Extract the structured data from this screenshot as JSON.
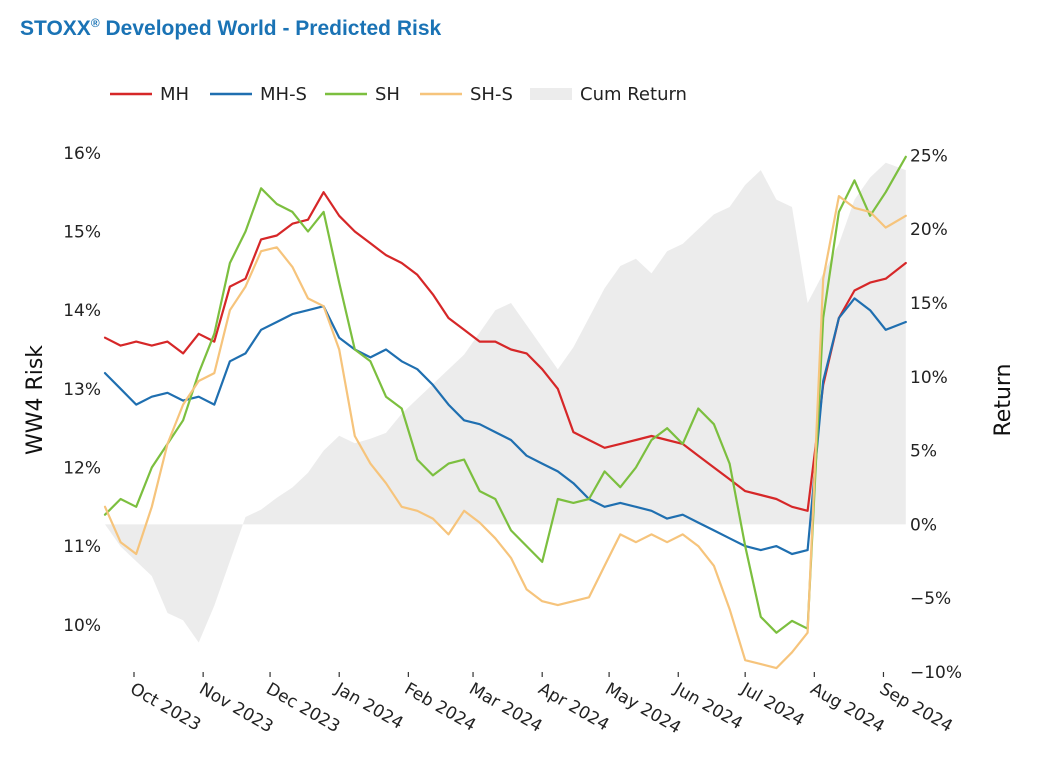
{
  "title": {
    "brand": "STOXX",
    "reg": "®",
    "rest": " Developed World - Predicted Risk"
  },
  "chart_data": {
    "type": "line",
    "title": "STOXX® Developed World - Predicted Risk",
    "ylabel": "WW4 Risk",
    "y2label": "Return",
    "ylim": [
      9.4,
      16.1
    ],
    "y2lim": [
      -10,
      25.7
    ],
    "yticks": [
      "10%",
      "11%",
      "12%",
      "13%",
      "14%",
      "15%",
      "16%"
    ],
    "yticks_values": [
      10,
      11,
      12,
      13,
      14,
      15,
      16
    ],
    "y2ticks": [
      "−10%",
      "−5%",
      "0%",
      "5%",
      "10%",
      "15%",
      "20%",
      "25%"
    ],
    "y2ticks_values": [
      -10,
      -5,
      0,
      5,
      10,
      15,
      20,
      25
    ],
    "xticks": [
      "Oct 2023",
      "Nov 2023",
      "Dec 2023",
      "Jan 2024",
      "Feb 2024",
      "Mar 2024",
      "Apr 2024",
      "May 2024",
      "Jun 2024",
      "Jul 2024",
      "Aug 2024",
      "Sep 2024"
    ],
    "xticks_values": [
      "2023-10-01",
      "2023-11-01",
      "2023-12-01",
      "2024-01-01",
      "2024-02-01",
      "2024-03-01",
      "2024-04-01",
      "2024-05-01",
      "2024-06-01",
      "2024-07-01",
      "2024-08-01",
      "2024-09-01"
    ],
    "xlim": [
      "2023-09-18",
      "2024-09-12"
    ],
    "legend_position": "top-left",
    "grid": false,
    "series": [
      {
        "name": "MH",
        "color": "#d62728",
        "axis": "left",
        "x": [
          "2023-09-18",
          "2023-09-25",
          "2023-10-02",
          "2023-10-09",
          "2023-10-16",
          "2023-10-23",
          "2023-10-30",
          "2023-11-06",
          "2023-11-13",
          "2023-11-20",
          "2023-11-27",
          "2023-12-04",
          "2023-12-11",
          "2023-12-18",
          "2023-12-25",
          "2024-01-01",
          "2024-01-08",
          "2024-01-15",
          "2024-01-22",
          "2024-01-29",
          "2024-02-05",
          "2024-02-12",
          "2024-02-19",
          "2024-02-26",
          "2024-03-04",
          "2024-03-11",
          "2024-03-18",
          "2024-03-25",
          "2024-04-01",
          "2024-04-08",
          "2024-04-15",
          "2024-04-22",
          "2024-04-29",
          "2024-05-06",
          "2024-05-13",
          "2024-05-20",
          "2024-05-27",
          "2024-06-03",
          "2024-06-10",
          "2024-06-17",
          "2024-06-24",
          "2024-07-01",
          "2024-07-08",
          "2024-07-15",
          "2024-07-22",
          "2024-07-29",
          "2024-08-05",
          "2024-08-12",
          "2024-08-19",
          "2024-08-26",
          "2024-09-02",
          "2024-09-11"
        ],
        "values": [
          13.65,
          13.55,
          13.6,
          13.55,
          13.6,
          13.45,
          13.7,
          13.6,
          14.3,
          14.4,
          14.9,
          14.95,
          15.1,
          15.15,
          15.5,
          15.2,
          15.0,
          14.85,
          14.7,
          14.6,
          14.45,
          14.2,
          13.9,
          13.75,
          13.6,
          13.6,
          13.5,
          13.45,
          13.25,
          13.0,
          12.45,
          12.35,
          12.25,
          12.3,
          12.35,
          12.4,
          12.35,
          12.3,
          12.15,
          12.0,
          11.85,
          11.7,
          11.65,
          11.6,
          11.5,
          11.45,
          13.05,
          13.9,
          14.25,
          14.35,
          14.4,
          14.6
        ]
      },
      {
        "name": "MH-S",
        "color": "#1f6fb0",
        "axis": "left",
        "x": [
          "2023-09-18",
          "2023-09-25",
          "2023-10-02",
          "2023-10-09",
          "2023-10-16",
          "2023-10-23",
          "2023-10-30",
          "2023-11-06",
          "2023-11-13",
          "2023-11-20",
          "2023-11-27",
          "2023-12-04",
          "2023-12-11",
          "2023-12-18",
          "2023-12-25",
          "2024-01-01",
          "2024-01-08",
          "2024-01-15",
          "2024-01-22",
          "2024-01-29",
          "2024-02-05",
          "2024-02-12",
          "2024-02-19",
          "2024-02-26",
          "2024-03-04",
          "2024-03-11",
          "2024-03-18",
          "2024-03-25",
          "2024-04-01",
          "2024-04-08",
          "2024-04-15",
          "2024-04-22",
          "2024-04-29",
          "2024-05-06",
          "2024-05-13",
          "2024-05-20",
          "2024-05-27",
          "2024-06-03",
          "2024-06-10",
          "2024-06-17",
          "2024-06-24",
          "2024-07-01",
          "2024-07-08",
          "2024-07-15",
          "2024-07-22",
          "2024-07-29",
          "2024-08-05",
          "2024-08-12",
          "2024-08-19",
          "2024-08-26",
          "2024-09-02",
          "2024-09-11"
        ],
        "values": [
          13.2,
          13.0,
          12.8,
          12.9,
          12.95,
          12.85,
          12.9,
          12.8,
          13.35,
          13.45,
          13.75,
          13.85,
          13.95,
          14.0,
          14.05,
          13.65,
          13.5,
          13.4,
          13.5,
          13.35,
          13.25,
          13.05,
          12.8,
          12.6,
          12.55,
          12.45,
          12.35,
          12.15,
          12.05,
          11.95,
          11.8,
          11.6,
          11.5,
          11.55,
          11.5,
          11.45,
          11.35,
          11.4,
          11.3,
          11.2,
          11.1,
          11.0,
          10.95,
          11.0,
          10.9,
          10.95,
          13.1,
          13.9,
          14.15,
          14.0,
          13.75,
          13.85
        ]
      },
      {
        "name": "SH",
        "color": "#7cbf3f",
        "axis": "left",
        "x": [
          "2023-09-18",
          "2023-09-25",
          "2023-10-02",
          "2023-10-09",
          "2023-10-16",
          "2023-10-23",
          "2023-10-30",
          "2023-11-06",
          "2023-11-13",
          "2023-11-20",
          "2023-11-27",
          "2023-12-04",
          "2023-12-11",
          "2023-12-18",
          "2023-12-25",
          "2024-01-01",
          "2024-01-08",
          "2024-01-15",
          "2024-01-22",
          "2024-01-29",
          "2024-02-05",
          "2024-02-12",
          "2024-02-19",
          "2024-02-26",
          "2024-03-04",
          "2024-03-11",
          "2024-03-18",
          "2024-03-25",
          "2024-04-01",
          "2024-04-08",
          "2024-04-15",
          "2024-04-22",
          "2024-04-29",
          "2024-05-06",
          "2024-05-13",
          "2024-05-20",
          "2024-05-27",
          "2024-06-03",
          "2024-06-10",
          "2024-06-17",
          "2024-06-24",
          "2024-07-01",
          "2024-07-08",
          "2024-07-15",
          "2024-07-22",
          "2024-07-29",
          "2024-08-05",
          "2024-08-12",
          "2024-08-19",
          "2024-08-26",
          "2024-09-02",
          "2024-09-11"
        ],
        "values": [
          11.4,
          11.6,
          11.5,
          12.0,
          12.3,
          12.6,
          13.2,
          13.7,
          14.6,
          15.0,
          15.55,
          15.35,
          15.25,
          15.0,
          15.25,
          14.35,
          13.5,
          13.35,
          12.9,
          12.75,
          12.1,
          11.9,
          12.05,
          12.1,
          11.7,
          11.6,
          11.2,
          11.0,
          10.8,
          11.6,
          11.55,
          11.6,
          11.95,
          11.75,
          12.0,
          12.35,
          12.5,
          12.3,
          12.75,
          12.55,
          12.05,
          11.0,
          10.1,
          9.9,
          10.05,
          9.95,
          13.9,
          15.25,
          15.65,
          15.2,
          15.5,
          15.95
        ]
      },
      {
        "name": "SH-S",
        "color": "#f6c47c",
        "axis": "left",
        "x": [
          "2023-09-18",
          "2023-09-25",
          "2023-10-02",
          "2023-10-09",
          "2023-10-16",
          "2023-10-23",
          "2023-10-30",
          "2023-11-06",
          "2023-11-13",
          "2023-11-20",
          "2023-11-27",
          "2023-12-04",
          "2023-12-11",
          "2023-12-18",
          "2023-12-25",
          "2024-01-01",
          "2024-01-08",
          "2024-01-15",
          "2024-01-22",
          "2024-01-29",
          "2024-02-05",
          "2024-02-12",
          "2024-02-19",
          "2024-02-26",
          "2024-03-04",
          "2024-03-11",
          "2024-03-18",
          "2024-03-25",
          "2024-04-01",
          "2024-04-08",
          "2024-04-15",
          "2024-04-22",
          "2024-04-29",
          "2024-05-06",
          "2024-05-13",
          "2024-05-20",
          "2024-05-27",
          "2024-06-03",
          "2024-06-10",
          "2024-06-17",
          "2024-06-24",
          "2024-07-01",
          "2024-07-08",
          "2024-07-15",
          "2024-07-22",
          "2024-07-29",
          "2024-08-05",
          "2024-08-12",
          "2024-08-19",
          "2024-08-26",
          "2024-09-02",
          "2024-09-11"
        ],
        "values": [
          11.5,
          11.05,
          10.9,
          11.5,
          12.3,
          12.8,
          13.1,
          13.2,
          14.0,
          14.3,
          14.75,
          14.8,
          14.55,
          14.15,
          14.05,
          13.5,
          12.4,
          12.05,
          11.8,
          11.5,
          11.45,
          11.35,
          11.15,
          11.45,
          11.3,
          11.1,
          10.85,
          10.45,
          10.3,
          10.25,
          10.3,
          10.35,
          10.75,
          11.15,
          11.05,
          11.15,
          11.05,
          11.15,
          11.0,
          10.75,
          10.2,
          9.55,
          9.5,
          9.45,
          9.65,
          9.9,
          14.4,
          15.45,
          15.3,
          15.25,
          15.05,
          15.2
        ]
      },
      {
        "name": "Cum Return",
        "color": "#ececec",
        "axis": "right",
        "kind": "area",
        "x": [
          "2023-09-18",
          "2023-09-25",
          "2023-10-02",
          "2023-10-09",
          "2023-10-16",
          "2023-10-23",
          "2023-10-30",
          "2023-11-06",
          "2023-11-13",
          "2023-11-20",
          "2023-11-27",
          "2023-12-04",
          "2023-12-11",
          "2023-12-18",
          "2023-12-25",
          "2024-01-01",
          "2024-01-08",
          "2024-01-15",
          "2024-01-22",
          "2024-01-29",
          "2024-02-05",
          "2024-02-12",
          "2024-02-19",
          "2024-02-26",
          "2024-03-04",
          "2024-03-11",
          "2024-03-18",
          "2024-03-25",
          "2024-04-01",
          "2024-04-08",
          "2024-04-15",
          "2024-04-22",
          "2024-04-29",
          "2024-05-06",
          "2024-05-13",
          "2024-05-20",
          "2024-05-27",
          "2024-06-03",
          "2024-06-10",
          "2024-06-17",
          "2024-06-24",
          "2024-07-01",
          "2024-07-08",
          "2024-07-15",
          "2024-07-22",
          "2024-07-29",
          "2024-08-05",
          "2024-08-12",
          "2024-08-19",
          "2024-08-26",
          "2024-09-02",
          "2024-09-11"
        ],
        "values": [
          0,
          -1.5,
          -2.5,
          -3.5,
          -6.0,
          -6.5,
          -8.0,
          -5.5,
          -2.5,
          0.5,
          1.0,
          1.8,
          2.5,
          3.5,
          5.0,
          6.0,
          5.5,
          5.8,
          6.2,
          7.5,
          8.5,
          9.5,
          10.5,
          11.5,
          13.0,
          14.5,
          15.0,
          13.5,
          12.0,
          10.5,
          12.0,
          14.0,
          16.0,
          17.5,
          18.0,
          17.0,
          18.5,
          19.0,
          20.0,
          21.0,
          21.5,
          23.0,
          24.0,
          22.0,
          21.5,
          15.0,
          17.0,
          19.0,
          22.0,
          23.5,
          24.5,
          24.0
        ]
      }
    ]
  }
}
